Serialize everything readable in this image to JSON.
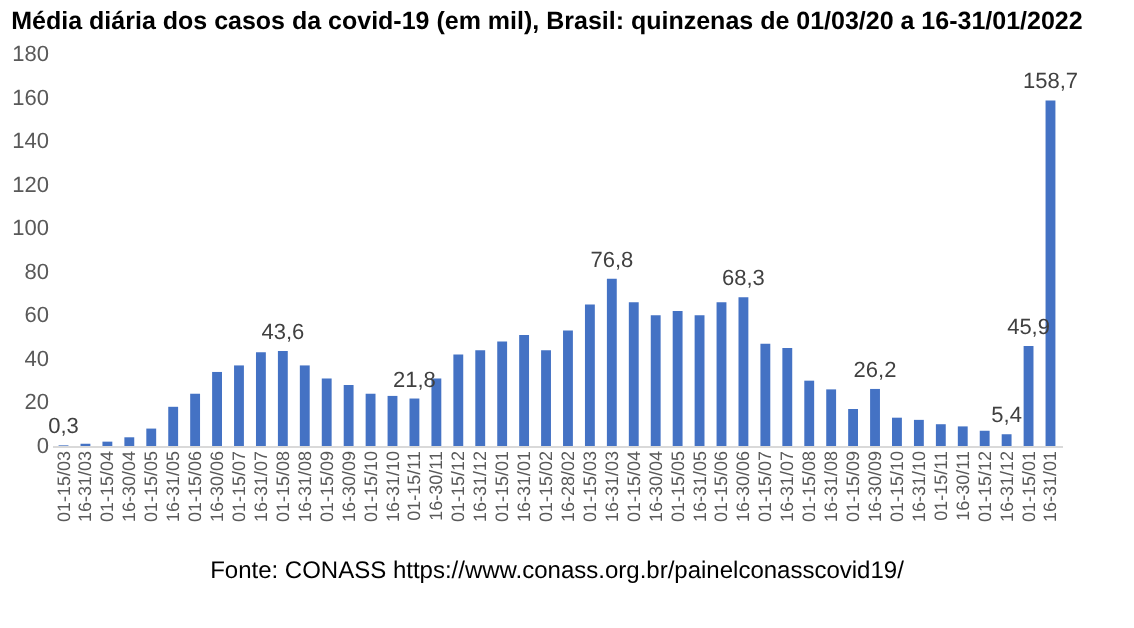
{
  "chart_data": {
    "type": "bar",
    "title": "Média diária dos casos da covid-19 (em mil), Brasil: quinzenas de 01/03/20 a 16-31/01/2022",
    "categories": [
      "01-15/03",
      "16-31/03",
      "01-15/04",
      "16-30/04",
      "01-15/05",
      "16-31/05",
      "01-15/06",
      "16-30/06",
      "01-15/07",
      "16-31/07",
      "01-15/08",
      "16-31/08",
      "01-15/09",
      "16-30/09",
      "01-15/10",
      "16-31/10",
      "01-15/11",
      "16-30/11",
      "01-15/12",
      "16-31/12",
      "01-15/01",
      "16-31/01",
      "01-15/02",
      "16-28/02",
      "01-15/03",
      "16-31/03",
      "01-15/04",
      "16-30/04",
      "01-15/05",
      "16-31/05",
      "01-15/06",
      "16-30/06",
      "01-15/07",
      "16-31/07",
      "01-15/08",
      "16-31/08",
      "01-15/09",
      "16-30/09",
      "01-15/10",
      "16-31/10",
      "01-15/11",
      "16-30/11",
      "01-15/12",
      "16-31/12",
      "01-15/01",
      "16-31/01"
    ],
    "values": [
      0.3,
      1,
      2,
      4,
      8,
      18,
      24,
      34,
      37,
      43,
      43.6,
      37,
      31,
      28,
      24,
      23,
      21.8,
      31,
      42,
      44,
      48,
      51,
      44,
      53,
      65,
      76.8,
      66,
      60,
      62,
      60,
      66,
      68.3,
      47,
      45,
      30,
      26,
      17,
      26.2,
      13,
      12,
      10,
      9,
      7,
      5.4,
      45.9,
      158.7
    ],
    "value_labels": [
      "0,3",
      null,
      null,
      null,
      null,
      null,
      null,
      null,
      null,
      null,
      "43,6",
      null,
      null,
      null,
      null,
      null,
      "21,8",
      null,
      null,
      null,
      null,
      null,
      null,
      null,
      null,
      "76,8",
      null,
      null,
      null,
      null,
      null,
      "68,3",
      null,
      null,
      null,
      null,
      null,
      "26,2",
      null,
      null,
      null,
      null,
      null,
      "5,4",
      "45,9",
      "158,7"
    ],
    "color": "#4472c4",
    "ylim": [
      0,
      180
    ],
    "yticks": [
      0,
      20,
      40,
      60,
      80,
      100,
      120,
      140,
      160,
      180
    ],
    "grid": false,
    "annotations": [
      "Fonte: CONASS https://www.conass.org.br/painelconasscovid19/"
    ]
  }
}
